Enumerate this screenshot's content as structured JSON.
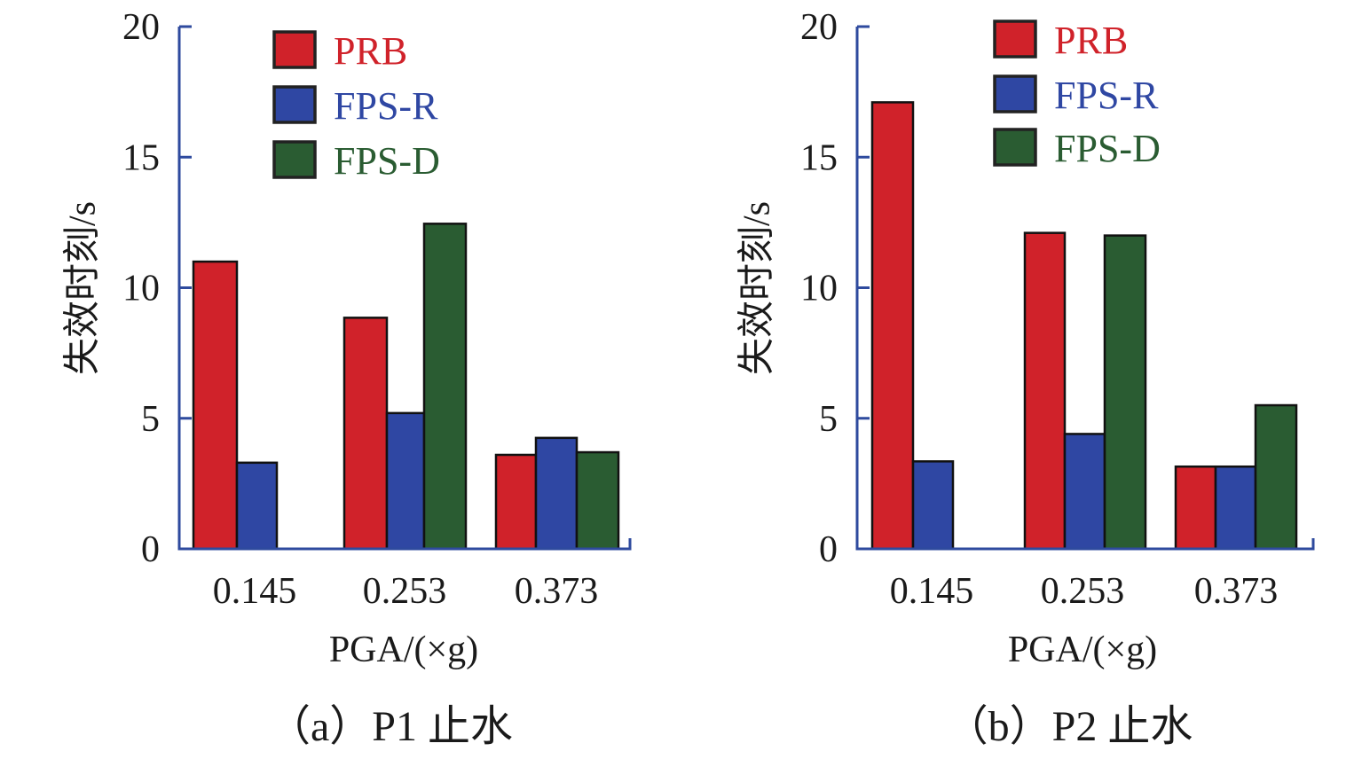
{
  "colors": {
    "axis": "#2e4a9e",
    "PRB": "#d0222a",
    "FPS-R": "#2f47a3",
    "FPS-D": "#2a5c32",
    "bar_edge": "#111111"
  },
  "chart_data": [
    {
      "type": "bar",
      "title": "（a）P1 止水",
      "xlabel": "PGA/(×g)",
      "ylabel": "失效时刻/s",
      "categories": [
        "0.145",
        "0.253",
        "0.373"
      ],
      "ylim": [
        0,
        20
      ],
      "yticks": [
        "0",
        "5",
        "10",
        "15",
        "20"
      ],
      "grid": false,
      "legend_position": "top-center",
      "series": [
        {
          "name": "PRB",
          "values": [
            11.0,
            8.85,
            3.6
          ]
        },
        {
          "name": "FPS-R",
          "values": [
            3.3,
            5.2,
            4.25
          ]
        },
        {
          "name": "FPS-D",
          "values": [
            null,
            12.45,
            3.7
          ]
        }
      ]
    },
    {
      "type": "bar",
      "title": "（b）P2 止水",
      "xlabel": "PGA/(×g)",
      "ylabel": "失效时刻/s",
      "categories": [
        "0.145",
        "0.253",
        "0.373"
      ],
      "ylim": [
        0,
        20
      ],
      "yticks": [
        "0",
        "5",
        "10",
        "15",
        "20"
      ],
      "grid": false,
      "legend_position": "top-center",
      "series": [
        {
          "name": "PRB",
          "values": [
            17.1,
            12.1,
            3.15
          ]
        },
        {
          "name": "FPS-R",
          "values": [
            3.35,
            4.4,
            3.15
          ]
        },
        {
          "name": "FPS-D",
          "values": [
            null,
            12.0,
            5.5
          ]
        }
      ]
    }
  ]
}
